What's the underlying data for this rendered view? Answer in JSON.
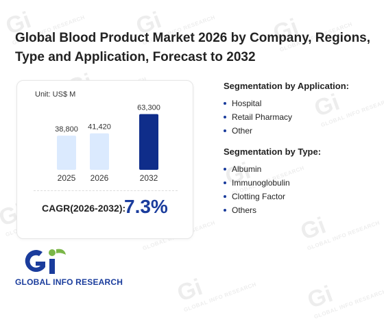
{
  "title": "Global Blood Product Market 2026 by Company, Regions, Type and Application, Forecast to 2032",
  "unit": "Unit: US$ M",
  "chart_data": {
    "type": "bar",
    "categories": [
      "2025",
      "2026",
      "2032"
    ],
    "values": [
      38800,
      41420,
      63300
    ],
    "value_labels": [
      "38,800",
      "41,420",
      "63,300"
    ],
    "title": "",
    "xlabel": "",
    "ylabel": "",
    "ylim": [
      0,
      70000
    ],
    "grid": false,
    "colors": [
      "#dbeafe",
      "#dbeafe",
      "#0f2d8a"
    ]
  },
  "cagr": {
    "label": "CAGR(2026-2032):",
    "value": "7.3%"
  },
  "segmentation": {
    "application": {
      "heading": "Segmentation by Application:",
      "items": [
        "Hospital",
        "Retail Pharmacy",
        "Other"
      ]
    },
    "type": {
      "heading": "Segmentation by Type:",
      "items": [
        "Albumin",
        "Immunoglobulin",
        "Clotting Factor",
        "Others"
      ]
    }
  },
  "logo": {
    "mark": "Gi",
    "name": "GLOBAL INFO RESEARCH"
  },
  "watermark": {
    "mark": "Gi",
    "text": "GLOBAL INFO RESEARCH"
  },
  "colors": {
    "accent": "#1a3c9c",
    "logo_green": "#7ab648"
  }
}
